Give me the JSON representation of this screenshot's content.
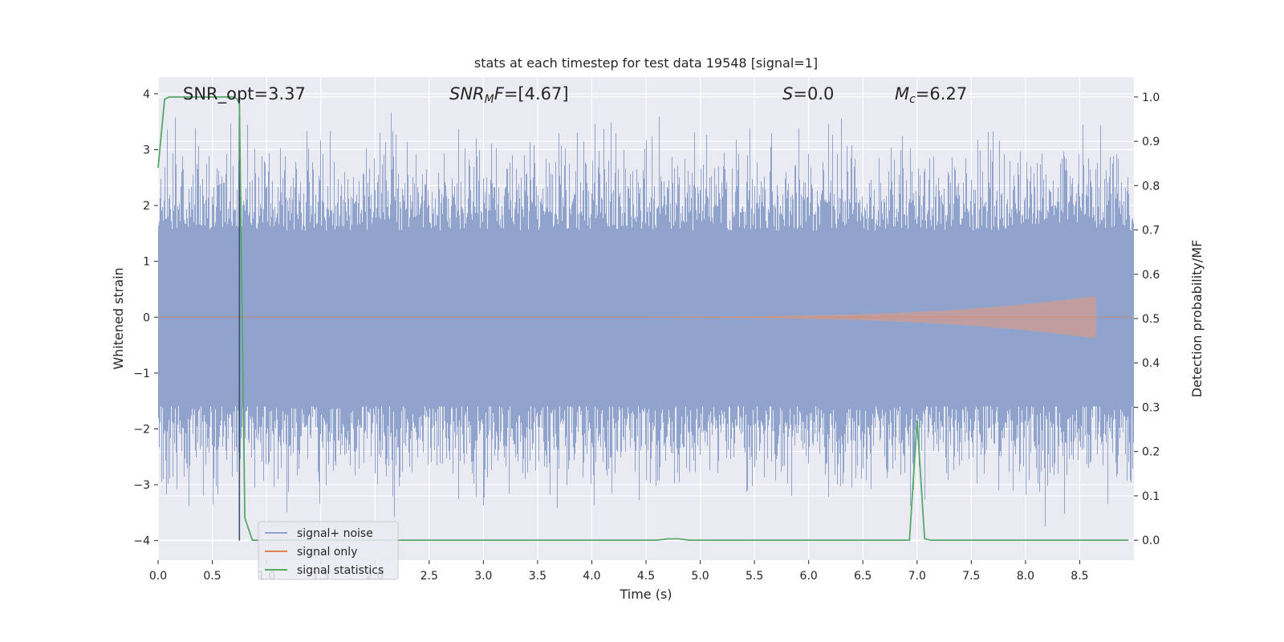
{
  "chart_data": {
    "type": "line",
    "title": "stats at each timestep for test data 19548 [signal=1]",
    "xlabel": "Time (s)",
    "ylabel_left": "Whitened strain",
    "ylabel_right": "Detection probability/MF",
    "xlim": [
      0.0,
      9.0
    ],
    "ylim_left": [
      -4.35,
      4.3
    ],
    "ylim_right": [
      -0.045,
      1.045
    ],
    "x_ticks": [
      "0.0",
      "0.5",
      "1.0",
      "1.5",
      "2.0",
      "2.5",
      "3.0",
      "3.5",
      "4.0",
      "4.5",
      "5.0",
      "5.5",
      "6.0",
      "6.5",
      "7.0",
      "7.5",
      "8.0",
      "8.5"
    ],
    "y_ticks_left": [
      "−4",
      "−3",
      "−2",
      "−1",
      "0",
      "1",
      "2",
      "3",
      "4"
    ],
    "y_ticks_right": [
      "0.0",
      "0.1",
      "0.2",
      "0.3",
      "0.4",
      "0.5",
      "0.6",
      "0.7",
      "0.8",
      "0.9",
      "1.0"
    ],
    "grid": true,
    "legend_position": "lower-left",
    "annotations": [
      {
        "id": "snr-opt",
        "text": "SNR_opt=3.37"
      },
      {
        "id": "snr-mf",
        "text": "SNR_MF=[4.67]",
        "rich": [
          {
            "t": "SNR",
            "i": true
          },
          {
            "t": "M",
            "i": true,
            "sub": true
          },
          {
            "t": "F",
            "i": true
          },
          {
            "t": "=[4.67]"
          }
        ]
      },
      {
        "id": "s-stat",
        "text": "S=0.0",
        "rich": [
          {
            "t": "S",
            "i": true
          },
          {
            "t": "=0.0"
          }
        ]
      },
      {
        "id": "chirp-mass",
        "text": "M_c=6.27",
        "rich": [
          {
            "t": "M",
            "i": true
          },
          {
            "t": "c",
            "i": true,
            "sub": true
          },
          {
            "t": "=6.27"
          }
        ]
      }
    ],
    "series": [
      {
        "name": "signal+ noise",
        "color": "#8fa3cc",
        "axis": "left",
        "kind": "noise"
      },
      {
        "name": "signal only",
        "color": "#dd8452",
        "axis": "left",
        "kind": "chirp",
        "start": 4.3,
        "end": 8.65,
        "peak_amplitude": 0.35
      },
      {
        "name": "signal statistics",
        "color": "#55a868",
        "axis": "right",
        "kind": "line",
        "x": [
          0.0,
          0.06,
          0.1,
          0.2,
          0.3,
          0.4,
          0.5,
          0.6,
          0.7,
          0.73,
          0.75,
          0.8,
          0.87,
          1.0,
          2.0,
          3.0,
          4.0,
          4.6,
          4.7,
          4.8,
          4.9,
          5.0,
          6.0,
          6.93,
          7.0,
          7.07,
          7.13,
          8.0,
          8.95
        ],
        "y": [
          0.84,
          0.995,
          1.0,
          1.0,
          1.0,
          1.0,
          1.0,
          1.0,
          1.0,
          0.995,
          0.985,
          0.05,
          0.0,
          0.0,
          0.0,
          0.0,
          0.0,
          0.0,
          0.003,
          0.003,
          0.0,
          0.0,
          0.0,
          0.0,
          0.27,
          0.003,
          0.0,
          0.0,
          0.0
        ]
      }
    ],
    "vertical_marker": {
      "x": 0.75,
      "y_from": -4.0,
      "y_to": 4.0,
      "color": "#3b4f6e"
    }
  }
}
